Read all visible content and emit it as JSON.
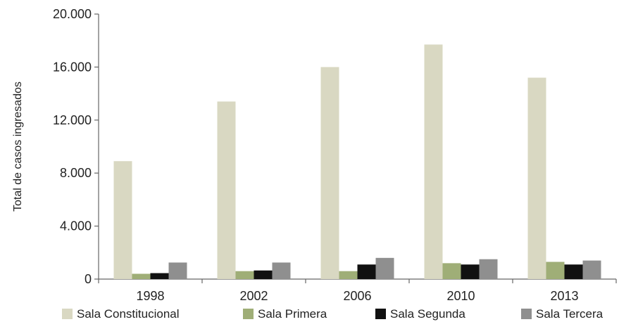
{
  "chart_data": {
    "type": "bar",
    "title": "",
    "xlabel": "",
    "ylabel": "Total de casos ingresados",
    "ylim": [
      0,
      20000
    ],
    "yticks": [
      0,
      4000,
      8000,
      12000,
      16000,
      20000
    ],
    "ytick_labels": [
      "0",
      "4.000",
      "8.000",
      "12.000",
      "16.000",
      "20.000"
    ],
    "categories": [
      "1998",
      "2002",
      "2006",
      "2010",
      "2013"
    ],
    "grid": false,
    "legend_position": "bottom",
    "series": [
      {
        "name": "Sala Constitucional",
        "color": "#d9d8c2",
        "values": [
          8900,
          13400,
          16000,
          17700,
          15200
        ]
      },
      {
        "name": "Sala Primera",
        "color": "#9fae77",
        "values": [
          400,
          600,
          600,
          1200,
          1300
        ]
      },
      {
        "name": "Sala Segunda",
        "color": "#111111",
        "values": [
          450,
          650,
          1100,
          1100,
          1100
        ]
      },
      {
        "name": "Sala Tercera",
        "color": "#8f8f8f",
        "values": [
          1250,
          1250,
          1600,
          1500,
          1400
        ]
      }
    ]
  }
}
